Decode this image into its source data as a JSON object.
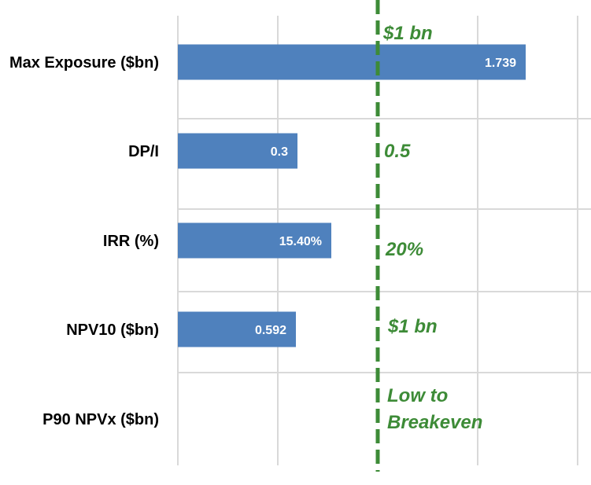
{
  "colors": {
    "bar": "#4f81bd",
    "target": "#3d8b37",
    "grid": "#d9d9d9",
    "category_text": "#000000",
    "value_text": "#ffffff"
  },
  "chart_data": {
    "type": "bar",
    "orientation": "horizontal",
    "title": "",
    "xlabel": "",
    "ylabel": "",
    "grid": true,
    "categories": [
      "Max Exposure ($bn)",
      "DP/I",
      "IRR (%)",
      "NPV10 ($bn)",
      "P90 NPVx ($bn)"
    ],
    "series": [
      {
        "values": [
          1.739,
          0.3,
          15.4,
          0.592,
          null
        ]
      }
    ],
    "value_labels": [
      "1.739",
      "0.3",
      "15.40%",
      "0.592",
      ""
    ],
    "target_line": {
      "style": "dashed",
      "label": "$1 bn"
    },
    "target_labels": [
      "0.5",
      "20%",
      "$1 bn",
      "Low to",
      "Breakeven"
    ]
  }
}
